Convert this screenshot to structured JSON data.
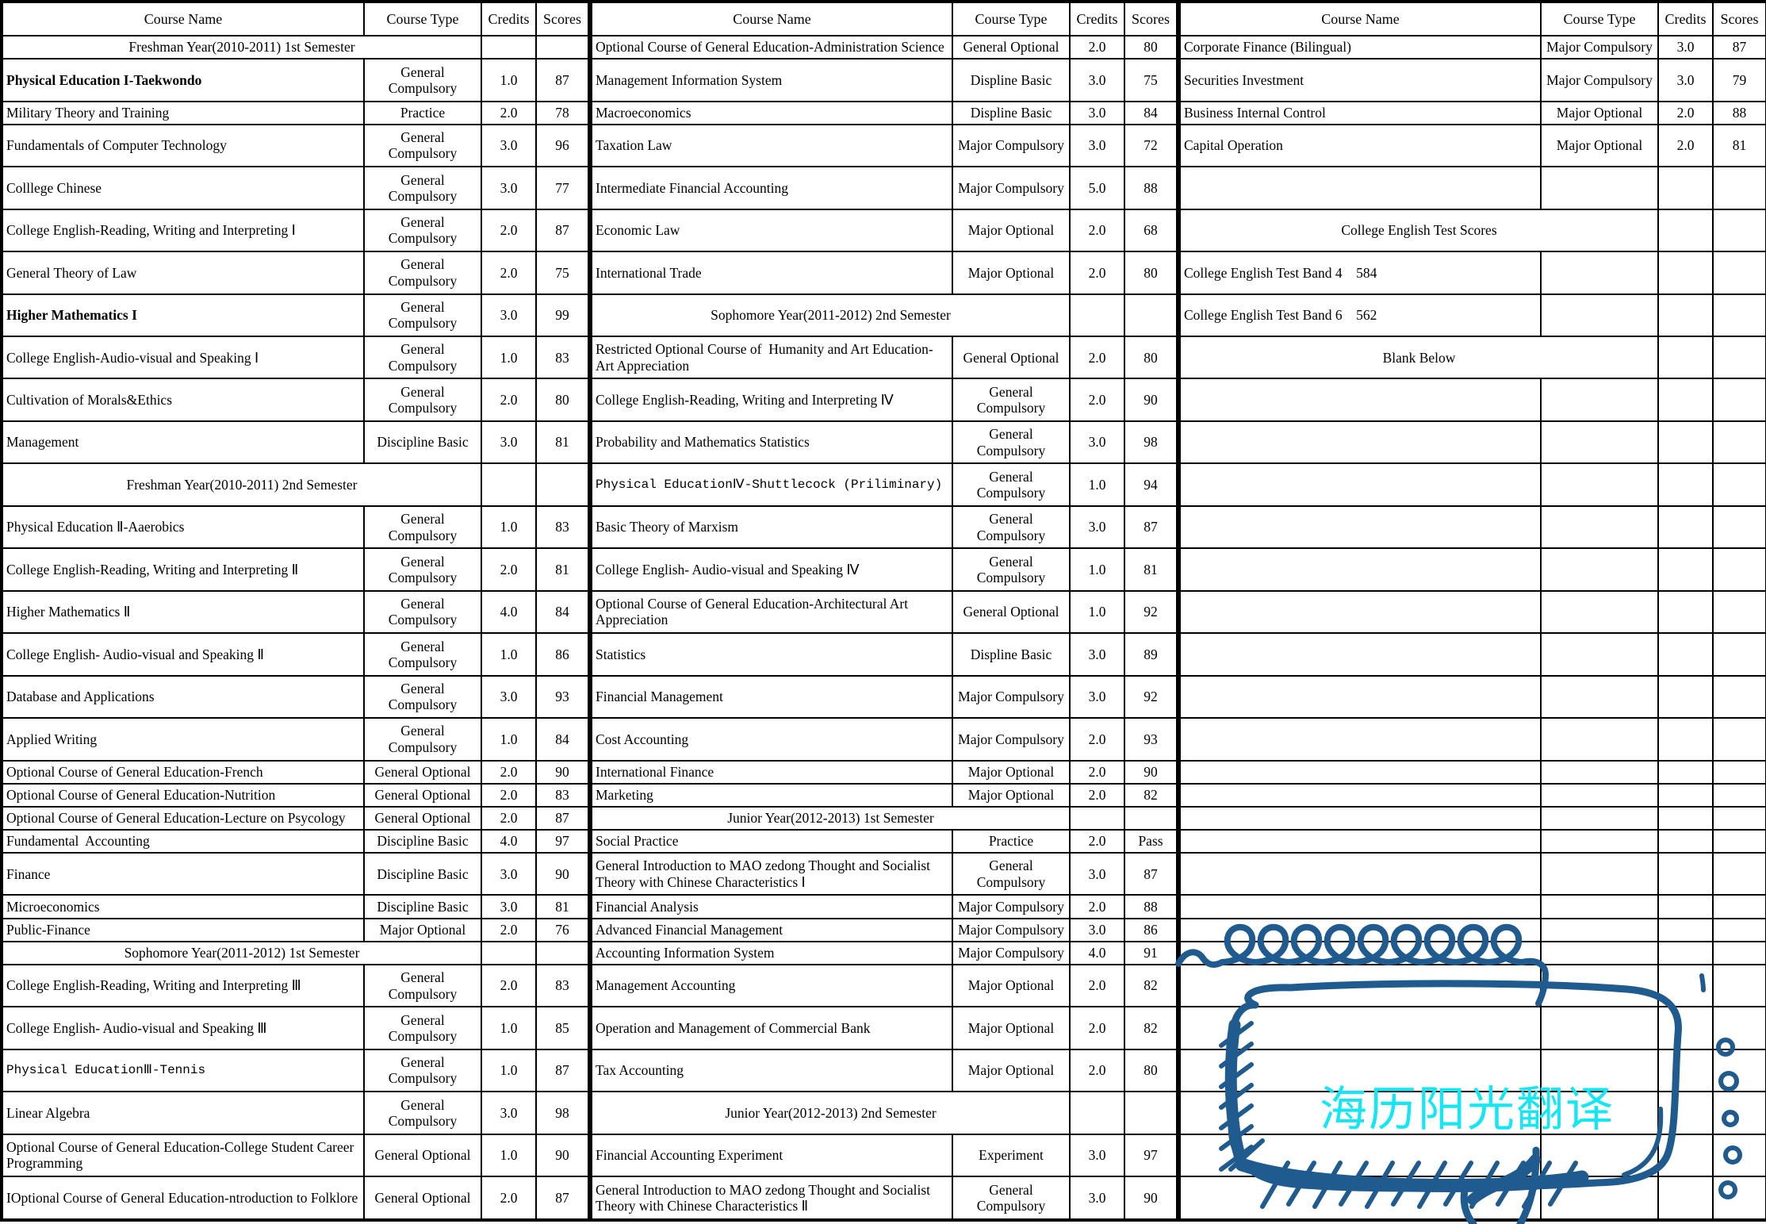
{
  "watermark": {
    "text": "海历阳光翻译",
    "pen_color": "#1f5b8e",
    "text_color": "#15e6f3"
  },
  "header": {
    "group_count": 3,
    "columns": [
      "Course Name",
      "Course Type",
      "Credits",
      "Scores"
    ]
  },
  "table": {
    "rows": [
      [
        {
          "k": "s",
          "l": "Freshman Year(2010-2011) 1st Semester"
        },
        {
          "k": "c",
          "n": "Optional Course of General Education-Administration Science",
          "t": "General Optional",
          "cr": "2.0",
          "s": "80"
        },
        {
          "k": "c",
          "n": "Corporate Finance (Bilingual)",
          "t": "Major Compulsory",
          "cr": "3.0",
          "s": "87"
        }
      ],
      [
        {
          "k": "c",
          "n": "Physical Education I-Taekwondo",
          "t": "General Compulsory",
          "cr": "1.0",
          "s": "87",
          "b": true
        },
        {
          "k": "c",
          "n": "Management Information System",
          "t": "Displine Basic",
          "cr": "3.0",
          "s": "75"
        },
        {
          "k": "c",
          "n": "Securities Investment",
          "t": "Major Compulsory",
          "cr": "3.0",
          "s": "79"
        }
      ],
      [
        {
          "k": "c",
          "n": "Military Theory and Training",
          "t": "Practice",
          "cr": "2.0",
          "s": "78"
        },
        {
          "k": "c",
          "n": "Macroeconomics",
          "t": "Displine Basic",
          "cr": "3.0",
          "s": "84"
        },
        {
          "k": "c",
          "n": "Business Internal Control",
          "t": "Major Optional",
          "cr": "2.0",
          "s": "88"
        }
      ],
      [
        {
          "k": "c",
          "n": "Fundamentals of Computer Technology",
          "t": "General Compulsory",
          "cr": "3.0",
          "s": "96"
        },
        {
          "k": "c",
          "n": "Taxation Law",
          "t": "Major Compulsory",
          "cr": "3.0",
          "s": "72"
        },
        {
          "k": "c",
          "n": "Capital Operation",
          "t": "Major Optional",
          "cr": "2.0",
          "s": "81"
        }
      ],
      [
        {
          "k": "c",
          "n": "Colllege Chinese",
          "t": "General Compulsory",
          "cr": "3.0",
          "s": "77"
        },
        {
          "k": "c",
          "n": "Intermediate Financial Accounting",
          "t": "Major Compulsory",
          "cr": "5.0",
          "s": "88"
        },
        {
          "k": "e"
        }
      ],
      [
        {
          "k": "c",
          "n": "College English-Reading, Writing and Interpreting Ⅰ",
          "t": "General Compulsory",
          "cr": "2.0",
          "s": "87"
        },
        {
          "k": "c",
          "n": "Economic Law",
          "t": "Major Optional",
          "cr": "2.0",
          "s": "68"
        },
        {
          "k": "s",
          "l": "College English Test Scores"
        }
      ],
      [
        {
          "k": "c",
          "n": "General Theory of Law",
          "t": "General Compulsory",
          "cr": "2.0",
          "s": "75"
        },
        {
          "k": "c",
          "n": "International Trade",
          "t": "Major Optional",
          "cr": "2.0",
          "s": "80"
        },
        {
          "k": "t",
          "l": "College English Test Band 4    584"
        }
      ],
      [
        {
          "k": "c",
          "n": "Higher Mathematics I",
          "t": "General Compulsory",
          "cr": "3.0",
          "s": "99",
          "b": true
        },
        {
          "k": "s",
          "l": "Sophomore Year(2011-2012) 2nd Semester"
        },
        {
          "k": "t",
          "l": "College English Test Band 6    562"
        }
      ],
      [
        {
          "k": "c",
          "n": "College English-Audio-visual and Speaking Ⅰ",
          "t": "General Compulsory",
          "cr": "1.0",
          "s": "83"
        },
        {
          "k": "c",
          "n": "Restricted Optional Course of  Humanity and Art Education-Art Appreciation",
          "t": "General Optional",
          "cr": "2.0",
          "s": "80"
        },
        {
          "k": "s",
          "l": "Blank Below"
        }
      ],
      [
        {
          "k": "c",
          "n": "Cultivation of Morals&Ethics",
          "t": "General Compulsory",
          "cr": "2.0",
          "s": "80"
        },
        {
          "k": "c",
          "n": "College English-Reading, Writing and Interpreting Ⅳ",
          "t": "General Compulsory",
          "cr": "2.0",
          "s": "90"
        },
        {
          "k": "e"
        }
      ],
      [
        {
          "k": "c",
          "n": "Management",
          "t": "Discipline Basic",
          "cr": "3.0",
          "s": "81"
        },
        {
          "k": "c",
          "n": "Probability and Mathematics Statistics",
          "t": "General Compulsory",
          "cr": "3.0",
          "s": "98"
        },
        {
          "k": "e"
        }
      ],
      [
        {
          "k": "s",
          "l": "Freshman Year(2010-2011) 2nd Semester"
        },
        {
          "k": "c",
          "n": "Physical EducationⅣ-Shuttlecock (Priliminary)",
          "t": "General Compulsory",
          "cr": "1.0",
          "s": "94",
          "m": true
        },
        {
          "k": "e"
        }
      ],
      [
        {
          "k": "c",
          "n": "Physical Education Ⅱ-Aaerobics",
          "t": "General Compulsory",
          "cr": "1.0",
          "s": "83"
        },
        {
          "k": "c",
          "n": "Basic Theory of Marxism",
          "t": "General Compulsory",
          "cr": "3.0",
          "s": "87"
        },
        {
          "k": "e"
        }
      ],
      [
        {
          "k": "c",
          "n": "College English-Reading, Writing and Interpreting Ⅱ",
          "t": "General Compulsory",
          "cr": "2.0",
          "s": "81"
        },
        {
          "k": "c",
          "n": "College English- Audio-visual and Speaking Ⅳ",
          "t": "General Compulsory",
          "cr": "1.0",
          "s": "81"
        },
        {
          "k": "e"
        }
      ],
      [
        {
          "k": "c",
          "n": "Higher Mathematics Ⅱ",
          "t": "General Compulsory",
          "cr": "4.0",
          "s": "84"
        },
        {
          "k": "c",
          "n": "Optional Course of General Education-Architectural Art Appreciation",
          "t": "General Optional",
          "cr": "1.0",
          "s": "92"
        },
        {
          "k": "e"
        }
      ],
      [
        {
          "k": "c",
          "n": "College English- Audio-visual and Speaking Ⅱ",
          "t": "General Compulsory",
          "cr": "1.0",
          "s": "86"
        },
        {
          "k": "c",
          "n": "Statistics",
          "t": "Displine Basic",
          "cr": "3.0",
          "s": "89"
        },
        {
          "k": "e"
        }
      ],
      [
        {
          "k": "c",
          "n": "Database and Applications",
          "t": "General Compulsory",
          "cr": "3.0",
          "s": "93"
        },
        {
          "k": "c",
          "n": "Financial Management",
          "t": "Major Compulsory",
          "cr": "3.0",
          "s": "92"
        },
        {
          "k": "e"
        }
      ],
      [
        {
          "k": "c",
          "n": "Applied Writing",
          "t": "General Compulsory",
          "cr": "1.0",
          "s": "84"
        },
        {
          "k": "c",
          "n": "Cost Accounting",
          "t": "Major Compulsory",
          "cr": "2.0",
          "s": "93"
        },
        {
          "k": "e"
        }
      ],
      [
        {
          "k": "c",
          "n": "Optional Course of General Education-French",
          "t": "General Optional",
          "cr": "2.0",
          "s": "90"
        },
        {
          "k": "c",
          "n": "International Finance",
          "t": "Major Optional",
          "cr": "2.0",
          "s": "90"
        },
        {
          "k": "e"
        }
      ],
      [
        {
          "k": "c",
          "n": "Optional Course of General Education-Nutrition",
          "t": "General Optional",
          "cr": "2.0",
          "s": "83"
        },
        {
          "k": "c",
          "n": "Marketing",
          "t": "Major Optional",
          "cr": "2.0",
          "s": "82"
        },
        {
          "k": "e"
        }
      ],
      [
        {
          "k": "c",
          "n": "Optional Course of General Education-Lecture on Psycology",
          "t": "General Optional",
          "cr": "2.0",
          "s": "87"
        },
        {
          "k": "s",
          "l": "Junior Year(2012-2013) 1st Semester"
        },
        {
          "k": "e"
        }
      ],
      [
        {
          "k": "c",
          "n": "Fundamental  Accounting",
          "t": "Discipline Basic",
          "cr": "4.0",
          "s": "97"
        },
        {
          "k": "c",
          "n": "Social Practice",
          "t": "Practice",
          "cr": "2.0",
          "s": "Pass"
        },
        {
          "k": "e"
        }
      ],
      [
        {
          "k": "c",
          "n": "Finance",
          "t": "Discipline Basic",
          "cr": "3.0",
          "s": "90"
        },
        {
          "k": "c",
          "n": "General Introduction to MAO zedong Thought and Socialist Theory with Chinese Characteristics Ⅰ",
          "t": "General Compulsory",
          "cr": "3.0",
          "s": "87"
        },
        {
          "k": "e"
        }
      ],
      [
        {
          "k": "c",
          "n": "Microeconomics",
          "t": "Discipline Basic",
          "cr": "3.0",
          "s": "81"
        },
        {
          "k": "c",
          "n": "Financial Analysis",
          "t": "Major Compulsory",
          "cr": "2.0",
          "s": "88"
        },
        {
          "k": "e"
        }
      ],
      [
        {
          "k": "c",
          "n": "Public-Finance",
          "t": "Major Optional",
          "cr": "2.0",
          "s": "76"
        },
        {
          "k": "c",
          "n": "Advanced Financial Management",
          "t": "Major Compulsory",
          "cr": "3.0",
          "s": "86"
        },
        {
          "k": "e"
        }
      ],
      [
        {
          "k": "s",
          "l": "Sophomore Year(2011-2012) 1st Semester"
        },
        {
          "k": "c",
          "n": "Accounting Information System",
          "t": "Major Compulsory",
          "cr": "4.0",
          "s": "91"
        },
        {
          "k": "e"
        }
      ],
      [
        {
          "k": "c",
          "n": "College English-Reading, Writing and Interpreting Ⅲ",
          "t": "General Compulsory",
          "cr": "2.0",
          "s": "83"
        },
        {
          "k": "c",
          "n": "Management Accounting",
          "t": "Major Optional",
          "cr": "2.0",
          "s": "82"
        },
        {
          "k": "e"
        }
      ],
      [
        {
          "k": "c",
          "n": "College English- Audio-visual and Speaking Ⅲ",
          "t": "General Compulsory",
          "cr": "1.0",
          "s": "85"
        },
        {
          "k": "c",
          "n": "Operation and Management of Commercial Bank",
          "t": "Major Optional",
          "cr": "2.0",
          "s": "82"
        },
        {
          "k": "e"
        }
      ],
      [
        {
          "k": "c",
          "n": "Physical EducationⅢ-Tennis",
          "t": "General Compulsory",
          "cr": "1.0",
          "s": "87",
          "m": true
        },
        {
          "k": "c",
          "n": "Tax Accounting",
          "t": "Major Optional",
          "cr": "2.0",
          "s": "80"
        },
        {
          "k": "e"
        }
      ],
      [
        {
          "k": "c",
          "n": "Linear Algebra",
          "t": "General Compulsory",
          "cr": "3.0",
          "s": "98"
        },
        {
          "k": "s",
          "l": "Junior Year(2012-2013) 2nd Semester"
        },
        {
          "k": "e"
        }
      ],
      [
        {
          "k": "c",
          "n": "Optional Course of General Education-College Student Career Programming",
          "t": "General Optional",
          "cr": "1.0",
          "s": "90"
        },
        {
          "k": "c",
          "n": "Financial Accounting Experiment",
          "t": "Experiment",
          "cr": "3.0",
          "s": "97"
        },
        {
          "k": "e"
        }
      ],
      [
        {
          "k": "c",
          "n": "IOptional Course of General Education-ntroduction to Folklore",
          "t": "General Optional",
          "cr": "2.0",
          "s": "87"
        },
        {
          "k": "c",
          "n": "General Introduction to MAO zedong Thought and Socialist Theory with Chinese Characteristics Ⅱ",
          "t": "General Compulsory",
          "cr": "3.0",
          "s": "90"
        },
        {
          "k": "e"
        }
      ]
    ]
  }
}
